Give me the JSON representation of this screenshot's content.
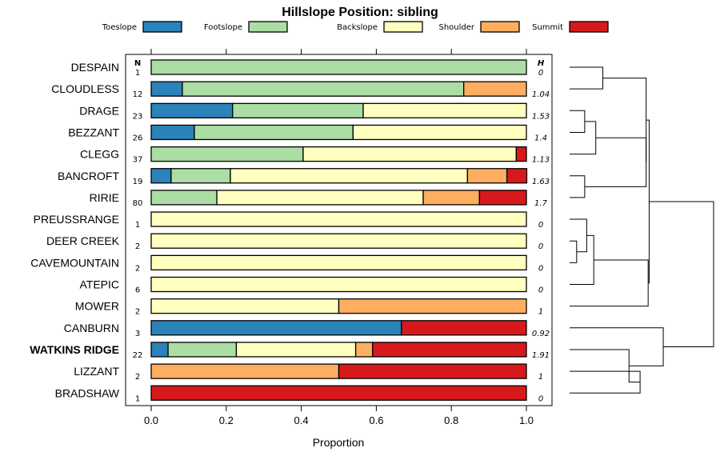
{
  "chart_data": {
    "type": "bar",
    "orientation": "horizontal-stacked",
    "title": "Hillslope Position: sibling",
    "xlabel": "Proportion",
    "xlim": [
      0,
      1
    ],
    "x_ticks": [
      "0.0",
      "0.2",
      "0.4",
      "0.6",
      "0.8",
      "1.0"
    ],
    "n_header": "N",
    "h_header": "H",
    "legend": [
      {
        "name": "Toeslope",
        "color": "#2b83ba"
      },
      {
        "name": "Footslope",
        "color": "#abdda4"
      },
      {
        "name": "Backslope",
        "color": "#ffffbf"
      },
      {
        "name": "Shoulder",
        "color": "#fdae61"
      },
      {
        "name": "Summit",
        "color": "#d7191c"
      }
    ],
    "rows": [
      {
        "label": "DESPAIN",
        "n": "1",
        "h": "0",
        "values": [
          0,
          1,
          0,
          0,
          0
        ],
        "bold": false
      },
      {
        "label": "CLOUDLESS",
        "n": "12",
        "h": "1.04",
        "values": [
          0.083,
          0.75,
          0,
          0.167,
          0
        ],
        "bold": false
      },
      {
        "label": "DRAGE",
        "n": "23",
        "h": "1.53",
        "values": [
          0.217,
          0.348,
          0.435,
          0,
          0
        ],
        "bold": false
      },
      {
        "label": "BEZZANT",
        "n": "26",
        "h": "1.4",
        "values": [
          0.115,
          0.423,
          0.462,
          0,
          0
        ],
        "bold": false
      },
      {
        "label": "CLEGG",
        "n": "37",
        "h": "1.13",
        "values": [
          0,
          0.405,
          0.568,
          0,
          0.027
        ],
        "bold": false
      },
      {
        "label": "BANCROFT",
        "n": "19",
        "h": "1.63",
        "values": [
          0.053,
          0.158,
          0.632,
          0.105,
          0.053
        ],
        "bold": false
      },
      {
        "label": "RIRIE",
        "n": "80",
        "h": "1.7",
        "values": [
          0,
          0.175,
          0.55,
          0.15,
          0.125
        ],
        "bold": false
      },
      {
        "label": "PREUSSRANGE",
        "n": "1",
        "h": "0",
        "values": [
          0,
          0,
          1,
          0,
          0
        ],
        "bold": false
      },
      {
        "label": "DEER CREEK",
        "n": "2",
        "h": "0",
        "values": [
          0,
          0,
          1,
          0,
          0
        ],
        "bold": false
      },
      {
        "label": "CAVEMOUNTAIN",
        "n": "2",
        "h": "0",
        "values": [
          0,
          0,
          1,
          0,
          0
        ],
        "bold": false
      },
      {
        "label": "ATEPIC",
        "n": "6",
        "h": "0",
        "values": [
          0,
          0,
          1,
          0,
          0
        ],
        "bold": false
      },
      {
        "label": "MOWER",
        "n": "2",
        "h": "1",
        "values": [
          0,
          0,
          0.5,
          0.5,
          0
        ],
        "bold": false
      },
      {
        "label": "CANBURN",
        "n": "3",
        "h": "0.92",
        "values": [
          0.667,
          0,
          0,
          0,
          0.333
        ],
        "bold": false
      },
      {
        "label": "WATKINS RIDGE",
        "n": "22",
        "h": "1.91",
        "values": [
          0.045,
          0.182,
          0.318,
          0.045,
          0.41
        ],
        "bold": true
      },
      {
        "label": "LIZZANT",
        "n": "2",
        "h": "1",
        "values": [
          0,
          0,
          0,
          0.5,
          0.5
        ],
        "bold": false
      },
      {
        "label": "BRADSHAW",
        "n": "1",
        "h": "0",
        "values": [
          0,
          0,
          0,
          0,
          1
        ],
        "bold": false
      }
    ],
    "dendrogram": {
      "leaf_order": [
        "DESPAIN",
        "CLOUDLESS",
        "DRAGE",
        "BEZZANT",
        "CLEGG",
        "BANCROFT",
        "RIRIE",
        "PREUSSRANGE",
        "DEER CREEK",
        "CAVEMOUNTAIN",
        "ATEPIC",
        "MOWER",
        "CANBURN",
        "WATKINS RIDGE",
        "LIZZANT",
        "BRADSHAW"
      ],
      "merges": [
        {
          "a": "L0",
          "b": "L1",
          "height": 0.165
        },
        {
          "a": "L2",
          "b": "L3",
          "height": 0.075
        },
        {
          "a": "L5",
          "b": "L6",
          "height": 0.075
        },
        {
          "a": "M1",
          "b": "L4",
          "height": 0.13
        },
        {
          "a": "M3",
          "b": "M2",
          "height": 0.38
        },
        {
          "a": "M0",
          "b": "M4",
          "height": 0.38
        },
        {
          "a": "L8",
          "b": "L9",
          "height": 0.035
        },
        {
          "a": "L7",
          "b": "M6",
          "height": 0.085
        },
        {
          "a": "M7",
          "b": "L10",
          "height": 0.12
        },
        {
          "a": "M8",
          "b": "L11",
          "height": 0.39
        },
        {
          "a": "M5",
          "b": "M9",
          "height": 0.395
        },
        {
          "a": "L14",
          "b": "L15",
          "height": 0.35
        },
        {
          "a": "L13",
          "b": "M11",
          "height": 0.295
        },
        {
          "a": "L12",
          "b": "M12",
          "height": 0.465
        },
        {
          "a": "M10",
          "b": "M13",
          "height": 0.715
        }
      ],
      "max_height": 0.715
    }
  }
}
